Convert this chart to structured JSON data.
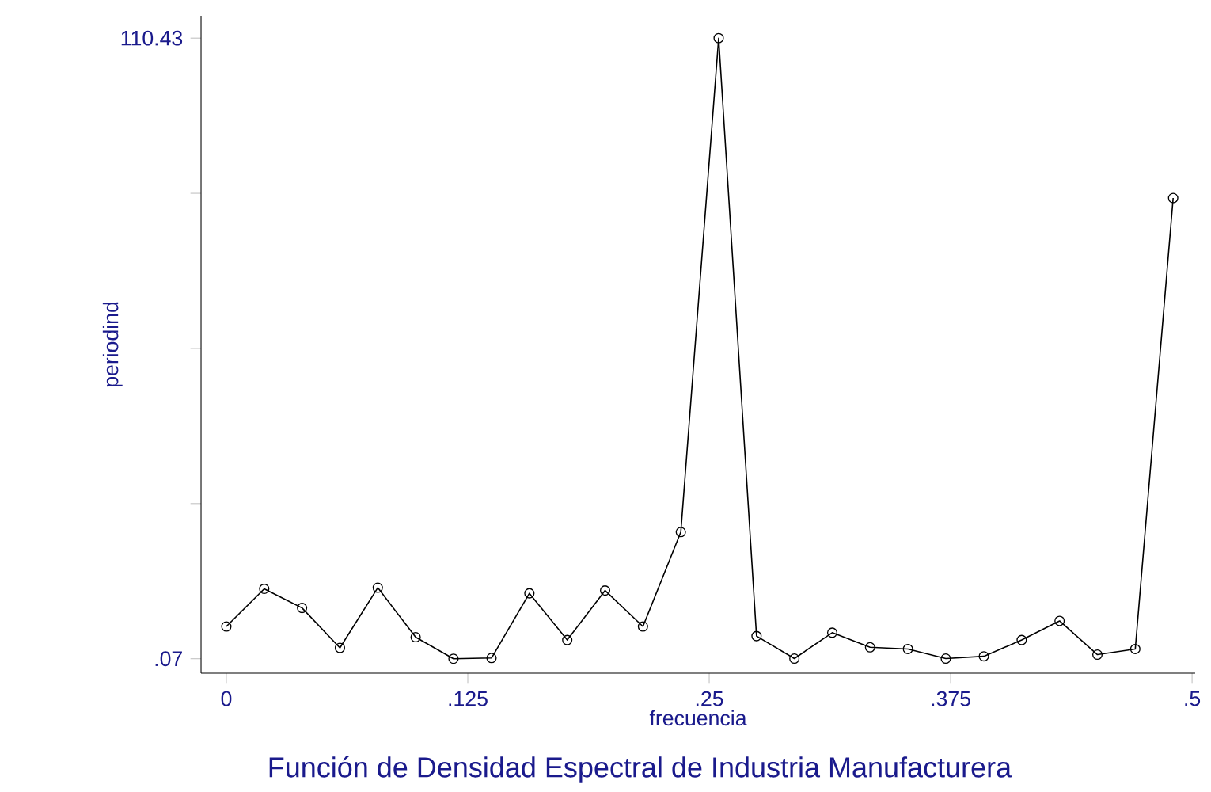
{
  "chart_data": {
    "type": "line",
    "title": "Función de Densidad Espectral de Industria Manufacturera",
    "xlabel": "frecuencia",
    "ylabel": "periodind",
    "x": [
      0,
      0.0196,
      0.0392,
      0.0588,
      0.0784,
      0.098,
      0.1176,
      0.1373,
      0.1569,
      0.1765,
      0.1961,
      0.2157,
      0.2353,
      0.2549,
      0.2745,
      0.2941,
      0.3137,
      0.3333,
      0.3529,
      0.3725,
      0.3922,
      0.4118,
      0.4314,
      0.451,
      0.4706,
      0.4902
    ],
    "series": [
      {
        "color": "#000000",
        "values": [
          5.8,
          12.5,
          9.1,
          2.0,
          12.7,
          3.9,
          0.07,
          0.2,
          11.7,
          3.4,
          12.2,
          5.8,
          22.6,
          110.43,
          4.1,
          0.1,
          4.7,
          2.1,
          1.8,
          0.1,
          0.5,
          3.4,
          6.8,
          0.8,
          1.8,
          82.0
        ]
      }
    ],
    "xlim": [
      -0.0131,
      0.5016
    ],
    "ylim": [
      -2.5,
      114.4
    ],
    "xticks": [
      0,
      {
        "value": 0.125,
        "label": ".125"
      },
      {
        "value": 0.25,
        "label": ".25"
      },
      {
        "value": 0.375,
        "label": ".375"
      },
      {
        "value": 0.5,
        "label": ".5"
      }
    ],
    "yticks": [
      {
        "value": 0.07,
        "label": ".07"
      },
      {
        "value": 27.66,
        "label": null
      },
      {
        "value": 55.25,
        "label": null
      },
      {
        "value": 82.84,
        "label": null
      },
      110.43
    ],
    "marker": "circle"
  }
}
